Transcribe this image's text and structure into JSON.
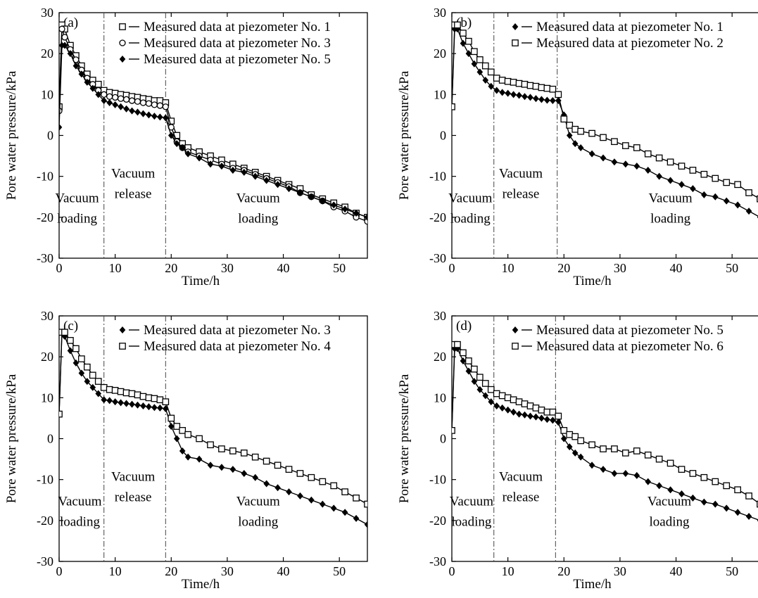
{
  "chart_data": [
    {
      "type": "line",
      "panel_label": "(a)",
      "xlabel": "Time/h",
      "ylabel": "Pore water pressure/kPa",
      "xlim": [
        0,
        55
      ],
      "ylim": [
        -30,
        30
      ],
      "xticks": [
        0,
        10,
        20,
        30,
        40,
        50
      ],
      "yticks": [
        -30,
        -20,
        -10,
        0,
        10,
        20,
        30
      ],
      "vlines": [
        8,
        19
      ],
      "annotations": [
        {
          "text": "Vacuum",
          "x": 3.2,
          "y": -16.3
        },
        {
          "text": "loading",
          "x": 3.2,
          "y": -21.3
        },
        {
          "text": "Vacuum",
          "x": 13.2,
          "y": -10.3
        },
        {
          "text": "release",
          "x": 13.2,
          "y": -15.3
        },
        {
          "text": "Vacuum",
          "x": 35.5,
          "y": -16.3
        },
        {
          "text": "loading",
          "x": 35.5,
          "y": -21.3
        }
      ],
      "legend_position": "top-right",
      "series": [
        {
          "name": "Measured data at piezometer No. 1",
          "marker": "square",
          "x": [
            0,
            0.5,
            1,
            2,
            3,
            4,
            5,
            6,
            7,
            8,
            9,
            10,
            11,
            12,
            13,
            14,
            15,
            16,
            17,
            18,
            19,
            20,
            21,
            22,
            23,
            25,
            27,
            29,
            31,
            33,
            35,
            37,
            39,
            41,
            43,
            45,
            47,
            49,
            51,
            53,
            55
          ],
          "y": [
            7,
            27,
            26,
            22,
            19.5,
            17,
            15,
            13.5,
            12.5,
            11,
            10.5,
            10.3,
            10,
            9.8,
            9.5,
            9.3,
            9,
            8.8,
            8.5,
            8.5,
            8,
            3.5,
            0,
            -2,
            -3,
            -4,
            -5,
            -6,
            -7,
            -8,
            -9,
            -10,
            -11,
            -12,
            -13,
            -14.5,
            -15.5,
            -16.5,
            -17.5,
            -19,
            -20
          ]
        },
        {
          "name": "Measured data at piezometer No. 3",
          "marker": "circle",
          "x": [
            0,
            0.5,
            1,
            2,
            3,
            4,
            5,
            6,
            7,
            8,
            9,
            10,
            11,
            12,
            13,
            14,
            15,
            16,
            17,
            18,
            19,
            20,
            21,
            22,
            23,
            25,
            27,
            29,
            31,
            33,
            35,
            37,
            39,
            41,
            43,
            45,
            47,
            49,
            51,
            53,
            55
          ],
          "y": [
            6,
            26,
            24,
            21,
            18.5,
            16,
            14,
            12.5,
            11,
            10,
            9.5,
            9.3,
            9,
            8.8,
            8.5,
            8.3,
            8,
            7.8,
            7.5,
            7.3,
            7,
            2,
            -1.5,
            -3,
            -4,
            -5,
            -6,
            -7,
            -8,
            -8.5,
            -9.5,
            -10.5,
            -11.5,
            -12.5,
            -14,
            -15,
            -16,
            -17.5,
            -18.5,
            -20,
            -21
          ]
        },
        {
          "name": "Measured data at piezometer No. 5",
          "marker": "diamond",
          "x": [
            0,
            0.5,
            1,
            2,
            3,
            4,
            5,
            6,
            7,
            8,
            9,
            10,
            11,
            12,
            13,
            14,
            15,
            16,
            17,
            18,
            19,
            20,
            21,
            22,
            23,
            25,
            27,
            29,
            31,
            33,
            35,
            37,
            39,
            41,
            43,
            45,
            47,
            49,
            51,
            53,
            55
          ],
          "y": [
            2,
            22,
            22,
            20,
            17,
            15,
            13,
            11.5,
            10,
            8.5,
            8,
            7.5,
            7,
            6.5,
            6,
            5.7,
            5.3,
            5,
            4.7,
            4.5,
            4.3,
            0,
            -2,
            -3,
            -4.5,
            -5.5,
            -7,
            -7.5,
            -8.5,
            -9,
            -10,
            -11,
            -12,
            -13,
            -14,
            -15,
            -16,
            -17,
            -18,
            -19,
            -20
          ]
        }
      ]
    },
    {
      "type": "line",
      "panel_label": "(b)",
      "xlabel": "Time/h",
      "ylabel": "Pore water pressure/kPa",
      "xlim": [
        0,
        55
      ],
      "ylim": [
        -30,
        30
      ],
      "xticks": [
        0,
        10,
        20,
        30,
        40,
        50
      ],
      "yticks": [
        -30,
        -20,
        -10,
        0,
        10,
        20,
        30
      ],
      "vlines": [
        7.5,
        18.8
      ],
      "annotations": [
        {
          "text": "Vacuum",
          "x": 3.3,
          "y": -16.3
        },
        {
          "text": "loading",
          "x": 3.3,
          "y": -21.3
        },
        {
          "text": "Vacuum",
          "x": 12.3,
          "y": -10.3
        },
        {
          "text": "release",
          "x": 12.3,
          "y": -15.3
        },
        {
          "text": "Vacuum",
          "x": 39,
          "y": -16.3
        },
        {
          "text": "loading",
          "x": 39,
          "y": -21.3
        }
      ],
      "legend_position": "top-right",
      "series": [
        {
          "name": "Measured data at piezometer No. 1",
          "marker": "diamond",
          "x": [
            0,
            0.5,
            1,
            2,
            3,
            4,
            5,
            6,
            7,
            8,
            9,
            10,
            11,
            12,
            13,
            14,
            15,
            16,
            17,
            18,
            19,
            20,
            21,
            22,
            23,
            25,
            27,
            29,
            31,
            33,
            35,
            37,
            39,
            41,
            43,
            45,
            47,
            49,
            51,
            53,
            55
          ],
          "y": [
            7,
            26,
            26,
            22.5,
            20,
            17.5,
            15.5,
            13.5,
            12,
            11,
            10.5,
            10.3,
            10,
            9.8,
            9.5,
            9.3,
            9,
            8.8,
            8.6,
            8.5,
            8.5,
            5,
            0,
            -2,
            -3,
            -4.5,
            -5.5,
            -6.5,
            -7,
            -7.5,
            -8.5,
            -10,
            -11,
            -12,
            -13,
            -14.5,
            -15,
            -16,
            -17,
            -18.5,
            -20
          ]
        },
        {
          "name": "Measured data at piezometer No. 2",
          "marker": "square",
          "x": [
            0,
            0.5,
            1,
            2,
            3,
            4,
            5,
            6,
            7,
            8,
            9,
            10,
            11,
            12,
            13,
            14,
            15,
            16,
            17,
            18,
            19,
            20,
            21,
            22,
            23,
            25,
            27,
            29,
            31,
            33,
            35,
            37,
            39,
            41,
            43,
            45,
            47,
            49,
            51,
            53,
            55
          ],
          "y": [
            7,
            27,
            27,
            25,
            23,
            20.5,
            18.5,
            17,
            15.5,
            14,
            13.5,
            13.2,
            13,
            12.7,
            12.5,
            12.2,
            12,
            11.7,
            11.5,
            11.3,
            10,
            4,
            2.5,
            1.5,
            1,
            0.5,
            -0.5,
            -1.5,
            -2.5,
            -3,
            -4.5,
            -5.5,
            -6.5,
            -7.5,
            -8.5,
            -9.5,
            -10.5,
            -11.5,
            -12,
            -14,
            -15.5
          ]
        }
      ]
    },
    {
      "type": "line",
      "panel_label": "(c)",
      "xlabel": "Time/h",
      "ylabel": "Pore water pressure/kPa",
      "xlim": [
        0,
        55
      ],
      "ylim": [
        -30,
        30
      ],
      "xticks": [
        0,
        10,
        20,
        30,
        40,
        50
      ],
      "yticks": [
        -30,
        -20,
        -10,
        0,
        10,
        20,
        30
      ],
      "vlines": [
        8,
        19
      ],
      "annotations": [
        {
          "text": "Vacuum",
          "x": 3.7,
          "y": -16.3
        },
        {
          "text": "loading",
          "x": 3.7,
          "y": -21.3
        },
        {
          "text": "Vacuum",
          "x": 13.2,
          "y": -10.3
        },
        {
          "text": "release",
          "x": 13.2,
          "y": -15.3
        },
        {
          "text": "Vacuum",
          "x": 35.5,
          "y": -16.3
        },
        {
          "text": "loading",
          "x": 35.5,
          "y": -21.3
        }
      ],
      "legend_position": "top-right",
      "series": [
        {
          "name": "Measured data at piezometer No. 3",
          "marker": "diamond",
          "x": [
            0,
            0.5,
            1,
            2,
            3,
            4,
            5,
            6,
            7,
            8,
            9,
            10,
            11,
            12,
            13,
            14,
            15,
            16,
            17,
            18,
            19,
            20,
            21,
            22,
            23,
            25,
            27,
            29,
            31,
            33,
            35,
            37,
            39,
            41,
            43,
            45,
            47,
            49,
            51,
            53,
            55
          ],
          "y": [
            6,
            26,
            25,
            21.5,
            18.5,
            16,
            14,
            12.5,
            11,
            9.5,
            9.3,
            9,
            8.8,
            8.6,
            8.4,
            8.2,
            8,
            7.8,
            7.6,
            7.5,
            7.3,
            3,
            0,
            -3,
            -4.5,
            -5,
            -6.5,
            -7,
            -7.5,
            -8.5,
            -9.5,
            -11,
            -12,
            -13,
            -14,
            -15,
            -16,
            -17,
            -18,
            -19.5,
            -21
          ]
        },
        {
          "name": "Measured data at piezometer No. 4",
          "marker": "square",
          "x": [
            0,
            0.5,
            1,
            2,
            3,
            4,
            5,
            6,
            7,
            8,
            9,
            10,
            11,
            12,
            13,
            14,
            15,
            16,
            17,
            18,
            19,
            20,
            21,
            22,
            23,
            25,
            27,
            29,
            31,
            33,
            35,
            37,
            39,
            41,
            43,
            45,
            47,
            49,
            51,
            53,
            55
          ],
          "y": [
            6,
            26,
            26,
            24,
            22,
            19.5,
            17.5,
            15.5,
            14,
            12.5,
            12,
            11.8,
            11.5,
            11.2,
            11,
            10.7,
            10.3,
            10,
            9.8,
            9.5,
            9,
            5,
            3,
            2,
            1,
            0,
            -1.5,
            -2.5,
            -3,
            -3.5,
            -4.5,
            -5.5,
            -6.5,
            -7.5,
            -8.5,
            -9.5,
            -10.5,
            -11.5,
            -13,
            -14.5,
            -16
          ]
        }
      ]
    },
    {
      "type": "line",
      "panel_label": "(d)",
      "xlabel": "Time/h",
      "ylabel": "Pore water pressure/kPa",
      "xlim": [
        0,
        55
      ],
      "ylim": [
        -30,
        30
      ],
      "xticks": [
        0,
        10,
        20,
        30,
        40,
        50
      ],
      "yticks": [
        -30,
        -20,
        -10,
        0,
        10,
        20,
        30
      ],
      "vlines": [
        7.5,
        18.5
      ],
      "annotations": [
        {
          "text": "Vacuum",
          "x": 3.5,
          "y": -16.3
        },
        {
          "text": "loading",
          "x": 3.5,
          "y": -21.3
        },
        {
          "text": "Vacuum",
          "x": 12.3,
          "y": -10.3
        },
        {
          "text": "release",
          "x": 12.3,
          "y": -15.3
        },
        {
          "text": "Vacuum",
          "x": 38.8,
          "y": -16.3
        },
        {
          "text": "loading",
          "x": 38.8,
          "y": -21.3
        }
      ],
      "legend_position": "top-right",
      "series": [
        {
          "name": "Measured data at piezometer No. 5",
          "marker": "diamond",
          "x": [
            0,
            0.5,
            1,
            2,
            3,
            4,
            5,
            6,
            7,
            8,
            9,
            10,
            11,
            12,
            13,
            14,
            15,
            16,
            17,
            18,
            19,
            20,
            21,
            22,
            23,
            25,
            27,
            29,
            31,
            33,
            35,
            37,
            39,
            41,
            43,
            45,
            47,
            49,
            51,
            53,
            55
          ],
          "y": [
            2,
            22,
            22,
            19,
            16.5,
            14,
            12,
            10.5,
            9,
            8,
            7.5,
            7,
            6.5,
            6,
            5.8,
            5.5,
            5.3,
            5,
            4.7,
            4.5,
            4,
            0,
            -2,
            -3.5,
            -4.5,
            -6.5,
            -7.5,
            -8.5,
            -8.5,
            -9,
            -10.5,
            -11.5,
            -12.5,
            -13.5,
            -14.5,
            -15.5,
            -16,
            -17,
            -18,
            -19,
            -20
          ]
        },
        {
          "name": "Measured data at piezometer No. 6",
          "marker": "square",
          "x": [
            0,
            0.5,
            1,
            2,
            3,
            4,
            5,
            6,
            7,
            8,
            9,
            10,
            11,
            12,
            13,
            14,
            15,
            16,
            17,
            18,
            19,
            20,
            21,
            22,
            23,
            25,
            27,
            29,
            31,
            33,
            35,
            37,
            39,
            41,
            43,
            45,
            47,
            49,
            51,
            53,
            55
          ],
          "y": [
            2,
            23,
            23,
            21,
            19,
            17,
            15,
            13.5,
            12,
            11,
            10.5,
            10,
            9.5,
            9,
            8.5,
            8,
            7.5,
            7,
            6.5,
            6.5,
            5.5,
            2,
            1,
            0.5,
            -0.5,
            -1.5,
            -2.5,
            -2.5,
            -3.5,
            -3,
            -4,
            -5,
            -6,
            -7.5,
            -8.5,
            -9.5,
            -10.5,
            -11.5,
            -12.5,
            -14,
            -16
          ]
        }
      ]
    }
  ]
}
